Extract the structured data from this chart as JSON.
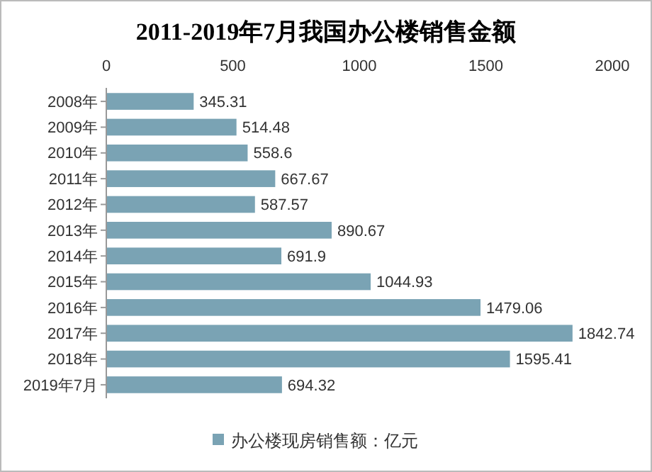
{
  "chart_data": {
    "type": "bar",
    "orientation": "horizontal",
    "title": "2011-2019年7月我国办公楼销售金额",
    "categories": [
      "2008年",
      "2009年",
      "2010年",
      "2011年",
      "2012年",
      "2013年",
      "2014年",
      "2015年",
      "2016年",
      "2017年",
      "2018年",
      "2019年7月"
    ],
    "series": [
      {
        "name": "办公楼现房销售额：亿元",
        "color": "#7aa3b4",
        "values": [
          345.31,
          514.48,
          558.6,
          667.67,
          587.57,
          890.67,
          691.9,
          1044.93,
          1479.06,
          1842.74,
          1595.41,
          694.32
        ]
      }
    ],
    "xlim": [
      0,
      2000
    ],
    "xticks": [
      0,
      500,
      1000,
      1500,
      2000
    ],
    "data_labels": true,
    "legend": "bottom",
    "grid": false
  }
}
